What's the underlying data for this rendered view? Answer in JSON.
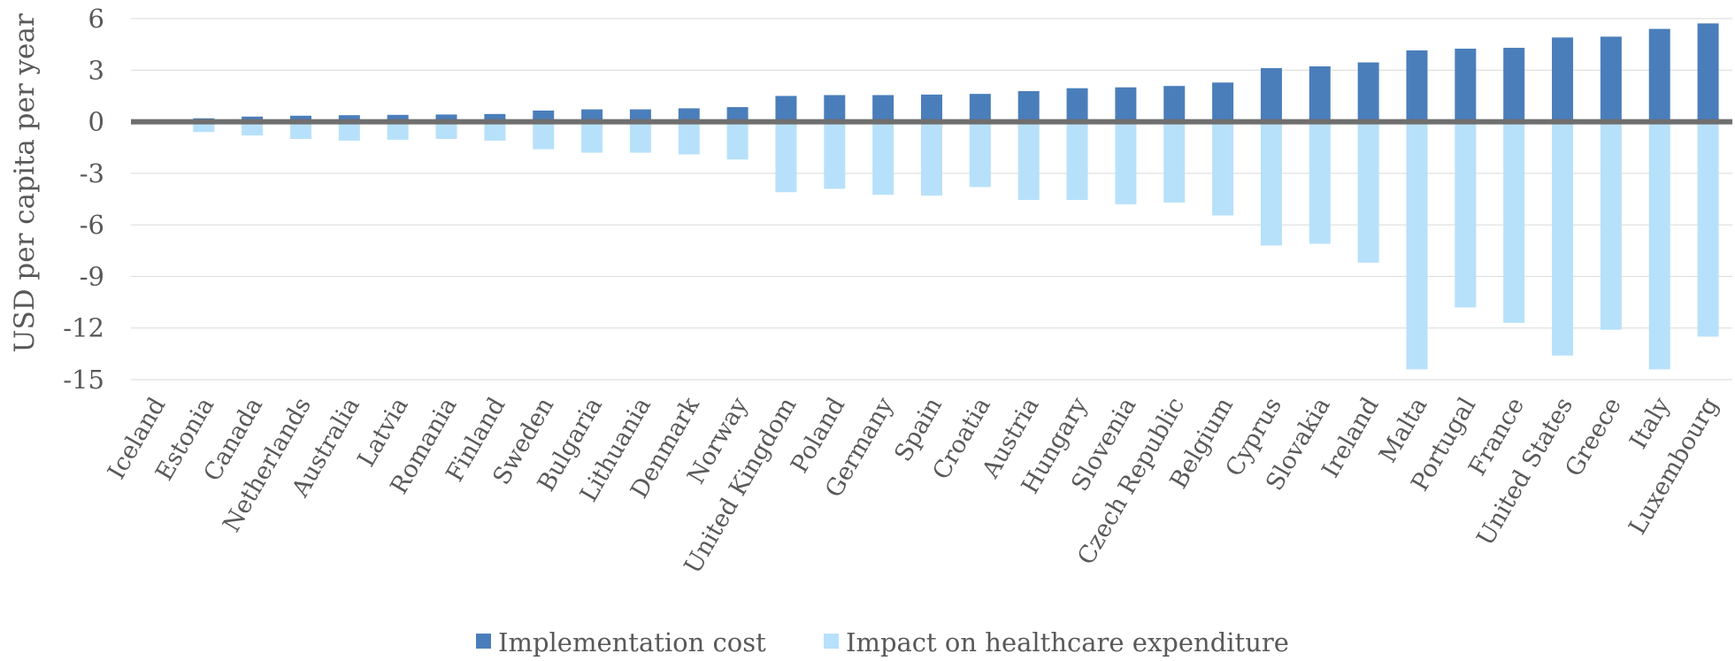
{
  "chart_data": {
    "type": "bar",
    "ylabel": "USD per capita per year",
    "ylim": [
      -15,
      6
    ],
    "yticks": [
      6,
      3,
      0,
      -3,
      -6,
      -9,
      -12,
      -15
    ],
    "grid": true,
    "legend_position": "bottom",
    "categories": [
      "Iceland",
      "Estonia",
      "Canada",
      "Netherlands",
      "Australia",
      "Latvia",
      "Romania",
      "Finland",
      "Sweden",
      "Bulgaria",
      "Lithuania",
      "Denmark",
      "Norway",
      "United Kingdom",
      "Poland",
      "Germany",
      "Spain",
      "Croatia",
      "Austria",
      "Hungary",
      "Slovenia",
      "Czech Republic",
      "Belgium",
      "Cyprus",
      "Slovakia",
      "Ireland",
      "Malta",
      "Portugal",
      "France",
      "United States",
      "Greece",
      "Italy",
      "Luxembourg"
    ],
    "series": [
      {
        "name": "Implementation cost",
        "color": "#4a7ebb",
        "values": [
          0.0,
          0.2,
          0.3,
          0.35,
          0.38,
          0.4,
          0.42,
          0.45,
          0.65,
          0.72,
          0.72,
          0.78,
          0.85,
          1.5,
          1.55,
          1.55,
          1.58,
          1.62,
          1.78,
          1.95,
          2.0,
          2.08,
          2.28,
          3.12,
          3.22,
          3.45,
          4.15,
          4.25,
          4.3,
          4.9,
          4.95,
          5.4,
          5.72
        ]
      },
      {
        "name": "Impact on healthcare expenditure",
        "color": "#b7e1fa",
        "values": [
          0.0,
          -0.6,
          -0.8,
          -1.0,
          -1.1,
          -1.05,
          -1.0,
          -1.1,
          -1.6,
          -1.8,
          -1.8,
          -1.9,
          -2.2,
          -4.1,
          -3.9,
          -4.25,
          -4.3,
          -3.8,
          -4.55,
          -4.55,
          -4.8,
          -4.7,
          -5.45,
          -7.2,
          -7.1,
          -8.2,
          -14.4,
          -10.8,
          -11.7,
          -13.6,
          -12.1,
          -14.4,
          -12.5
        ]
      }
    ]
  }
}
